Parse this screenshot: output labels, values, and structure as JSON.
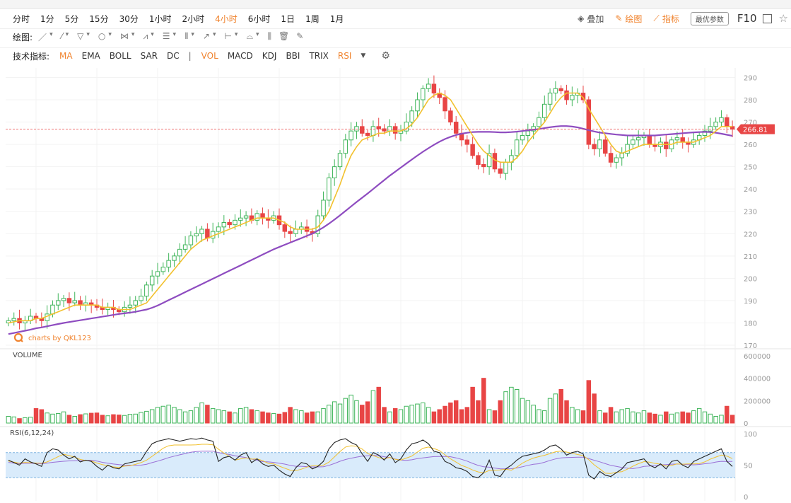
{
  "timeframes": [
    {
      "label": "分时",
      "active": false
    },
    {
      "label": "1分",
      "active": false
    },
    {
      "label": "5分",
      "active": false
    },
    {
      "label": "15分",
      "active": false
    },
    {
      "label": "30分",
      "active": false
    },
    {
      "label": "1小时",
      "active": false
    },
    {
      "label": "2小时",
      "active": false
    },
    {
      "label": "4小时",
      "active": true
    },
    {
      "label": "6小时",
      "active": false
    },
    {
      "label": "1日",
      "active": false
    },
    {
      "label": "1周",
      "active": false
    },
    {
      "label": "1月",
      "active": false
    }
  ],
  "toolbar": {
    "overlay": "叠加",
    "draw": "绘图",
    "indicator": "指标",
    "best_params": "最优参数",
    "f10": "F10"
  },
  "drawing": {
    "label": "绘图:",
    "tools": [
      "／",
      "▾",
      "⁄",
      "▾",
      "▽",
      "▾",
      "○",
      "▾",
      "⋈",
      "▾",
      "⩘",
      "▾",
      "☰",
      "▾",
      "⦀",
      "▾",
      "↗",
      "▾",
      "⊢",
      "▾",
      "⌓",
      "▾",
      "⫼",
      "🗑",
      "✎"
    ]
  },
  "indicators": {
    "label": "技术指标:",
    "items": [
      {
        "label": "MA",
        "active": true
      },
      {
        "label": "EMA",
        "active": false
      },
      {
        "label": "BOLL",
        "active": false
      },
      {
        "label": "SAR",
        "active": false
      },
      {
        "label": "DC",
        "active": false
      }
    ],
    "sep": "|",
    "items2": [
      {
        "label": "VOL",
        "active": true
      },
      {
        "label": "MACD",
        "active": false
      },
      {
        "label": "KDJ",
        "active": false
      },
      {
        "label": "BBI",
        "active": false
      },
      {
        "label": "TRIX",
        "active": false
      },
      {
        "label": "RSI",
        "active": true
      }
    ]
  },
  "colors": {
    "up": "#3fb55a",
    "down": "#e84545",
    "ma_short": "#f2c12e",
    "ma_long": "#8e4cc0",
    "rsi1": "#222222",
    "rsi2": "#f2c12e",
    "rsi3": "#9a6fd6",
    "accent": "#f0832e",
    "rsi_band": "#d9ebfb"
  },
  "chart_data": {
    "type": "candlestick",
    "watermark": "charts by QKL123",
    "current_price": 266.81,
    "price_axis": {
      "ticks": [
        290,
        280,
        270,
        260,
        250,
        240,
        230,
        220,
        210,
        200,
        190,
        180,
        170
      ],
      "range": [
        170,
        293
      ]
    },
    "volume": {
      "label": "VOLUME",
      "ticks": [
        "600000",
        "400000",
        "200000",
        "0"
      ],
      "range": [
        0,
        600000
      ]
    },
    "rsi": {
      "label": "RSI(6,12,24)",
      "ticks": [
        "100",
        "50",
        "0"
      ],
      "range": [
        0,
        100
      ],
      "band": [
        30,
        70
      ]
    },
    "close": [
      181,
      182,
      180,
      181,
      183,
      182,
      181,
      184,
      188,
      190,
      191,
      189,
      190,
      188,
      189,
      188,
      187,
      186,
      187,
      186,
      185,
      187,
      188,
      190,
      192,
      197,
      201,
      203,
      205,
      208,
      210,
      213,
      215,
      219,
      220,
      222,
      218,
      221,
      223,
      225,
      224,
      226,
      227,
      228,
      226,
      229,
      227,
      226,
      228,
      224,
      221,
      220,
      222,
      223,
      221,
      220,
      228,
      235,
      245,
      250,
      256,
      262,
      266,
      268,
      265,
      264,
      268,
      267,
      266,
      268,
      265,
      266,
      270,
      275,
      280,
      285,
      287,
      283,
      281,
      275,
      270,
      265,
      262,
      260,
      255,
      251,
      250,
      256,
      249,
      247,
      252,
      255,
      262,
      264,
      266,
      268,
      272,
      278,
      283,
      285,
      284,
      280,
      282,
      283,
      280,
      260,
      258,
      262,
      256,
      252,
      254,
      256,
      260,
      262,
      263,
      264,
      260,
      259,
      261,
      258,
      262,
      263,
      261,
      260,
      262,
      264,
      266,
      268,
      270,
      272,
      268,
      266.81
    ],
    "volume_values": [
      60,
      55,
      40,
      48,
      52,
      130,
      120,
      90,
      80,
      85,
      100,
      70,
      60,
      75,
      82,
      88,
      90,
      70,
      65,
      75,
      72,
      68,
      78,
      80,
      95,
      105,
      120,
      140,
      150,
      160,
      140,
      120,
      100,
      110,
      140,
      180,
      160,
      130,
      120,
      110,
      100,
      90,
      130,
      140,
      120,
      110,
      100,
      90,
      85,
      80,
      95,
      140,
      120,
      110,
      90,
      100,
      100,
      130,
      160,
      190,
      170,
      220,
      250,
      200,
      160,
      190,
      290,
      320,
      140,
      100,
      130,
      120,
      150,
      160,
      170,
      180,
      140,
      100,
      120,
      150,
      180,
      200,
      120,
      140,
      320,
      200,
      400,
      120,
      110,
      200,
      280,
      320,
      300,
      220,
      200,
      160,
      120,
      110,
      220,
      260,
      300,
      200,
      140,
      120,
      110,
      380,
      260,
      110,
      90,
      140,
      100,
      120,
      130,
      100,
      90,
      110,
      90,
      80,
      70,
      100,
      80,
      90,
      100,
      90,
      110,
      130,
      100,
      80,
      60,
      70,
      150,
      70
    ],
    "ma_short": [
      180,
      180.5,
      181,
      181,
      181,
      182,
      182,
      183,
      184,
      185,
      186,
      187,
      188,
      188,
      188,
      188,
      188,
      187,
      187,
      187,
      186,
      186,
      186,
      187,
      188,
      189,
      192,
      195,
      198,
      201,
      204,
      207,
      210,
      213,
      215,
      217,
      218,
      219,
      220,
      221,
      222,
      223,
      224,
      225,
      226,
      227,
      227,
      227,
      227,
      226,
      225,
      223,
      222,
      222,
      222,
      222,
      223,
      226,
      230,
      236,
      242,
      249,
      255,
      259,
      262,
      263,
      264,
      265,
      265,
      266,
      266,
      266,
      267,
      269,
      272,
      276,
      280,
      282,
      283,
      282,
      280,
      276,
      272,
      268,
      264,
      260,
      257,
      255,
      253,
      252,
      252,
      252,
      254,
      257,
      261,
      264,
      267,
      270,
      274,
      278,
      281,
      283,
      283,
      283,
      281,
      276,
      272,
      268,
      264,
      260,
      257,
      256,
      257,
      258,
      259,
      260,
      260,
      260,
      260,
      260,
      260,
      261,
      261,
      261,
      261,
      262,
      263,
      264,
      266,
      268,
      268,
      268
    ],
    "ma_long": [
      175,
      175.5,
      176,
      176.5,
      177,
      177.6,
      178,
      178.5,
      179,
      179.5,
      180,
      180.4,
      180.8,
      181.2,
      181.6,
      182,
      182.4,
      182.8,
      183.2,
      183.6,
      184,
      184.3,
      184.6,
      185,
      185.5,
      186,
      186.8,
      187.8,
      189,
      190.2,
      191.4,
      192.6,
      193.8,
      195,
      196.2,
      197.4,
      198.6,
      199.8,
      201,
      202.2,
      203.4,
      204.6,
      205.8,
      207,
      208.2,
      209.4,
      210.6,
      211.8,
      213,
      214,
      215,
      216,
      217,
      218,
      219,
      220,
      221.4,
      222.8,
      224.5,
      226.3,
      228.2,
      230.2,
      232.2,
      234.2,
      236.1,
      238,
      240,
      242,
      244,
      246,
      247.8,
      249.6,
      251.4,
      253.2,
      255,
      256.7,
      258.3,
      259.8,
      261.2,
      262.4,
      263.4,
      264.2,
      264.8,
      265.2,
      265.5,
      265.6,
      265.6,
      265.6,
      265.5,
      265.4,
      265.4,
      265.5,
      265.7,
      266,
      266.3,
      266.6,
      266.9,
      267.3,
      267.7,
      268,
      268.2,
      268.2,
      268,
      267.6,
      267,
      266.4,
      265.8,
      265.3,
      265,
      264.7,
      264.4,
      264.2,
      264,
      264,
      264,
      264,
      264,
      264,
      264.2,
      264.4,
      264.6,
      264.8,
      265,
      265.2,
      265.4,
      265.5,
      265.6,
      265.5,
      265.2,
      264.8,
      264.3,
      263.8
    ],
    "rsi_values": [
      58,
      54,
      50,
      60,
      55,
      52,
      48,
      70,
      76,
      74,
      66,
      60,
      64,
      55,
      58,
      56,
      48,
      42,
      50,
      46,
      44,
      52,
      54,
      56,
      58,
      72,
      84,
      88,
      90,
      92,
      90,
      88,
      90,
      92,
      91,
      93,
      90,
      88,
      56,
      62,
      64,
      58,
      66,
      70,
      54,
      60,
      52,
      48,
      50,
      42,
      36,
      32,
      46,
      54,
      52,
      44,
      48,
      56,
      76,
      86,
      90,
      92,
      86,
      82,
      68,
      56,
      70,
      66,
      58,
      68,
      54,
      60,
      74,
      84,
      86,
      90,
      84,
      72,
      70,
      56,
      52,
      46,
      44,
      40,
      32,
      30,
      38,
      58,
      34,
      32,
      44,
      50,
      58,
      64,
      66,
      68,
      70,
      74,
      80,
      82,
      76,
      66,
      70,
      72,
      68,
      34,
      28,
      40,
      34,
      32,
      38,
      44,
      54,
      56,
      58,
      60,
      50,
      46,
      52,
      44,
      56,
      58,
      50,
      46,
      56,
      60,
      64,
      68,
      72,
      76,
      56,
      48
    ]
  }
}
